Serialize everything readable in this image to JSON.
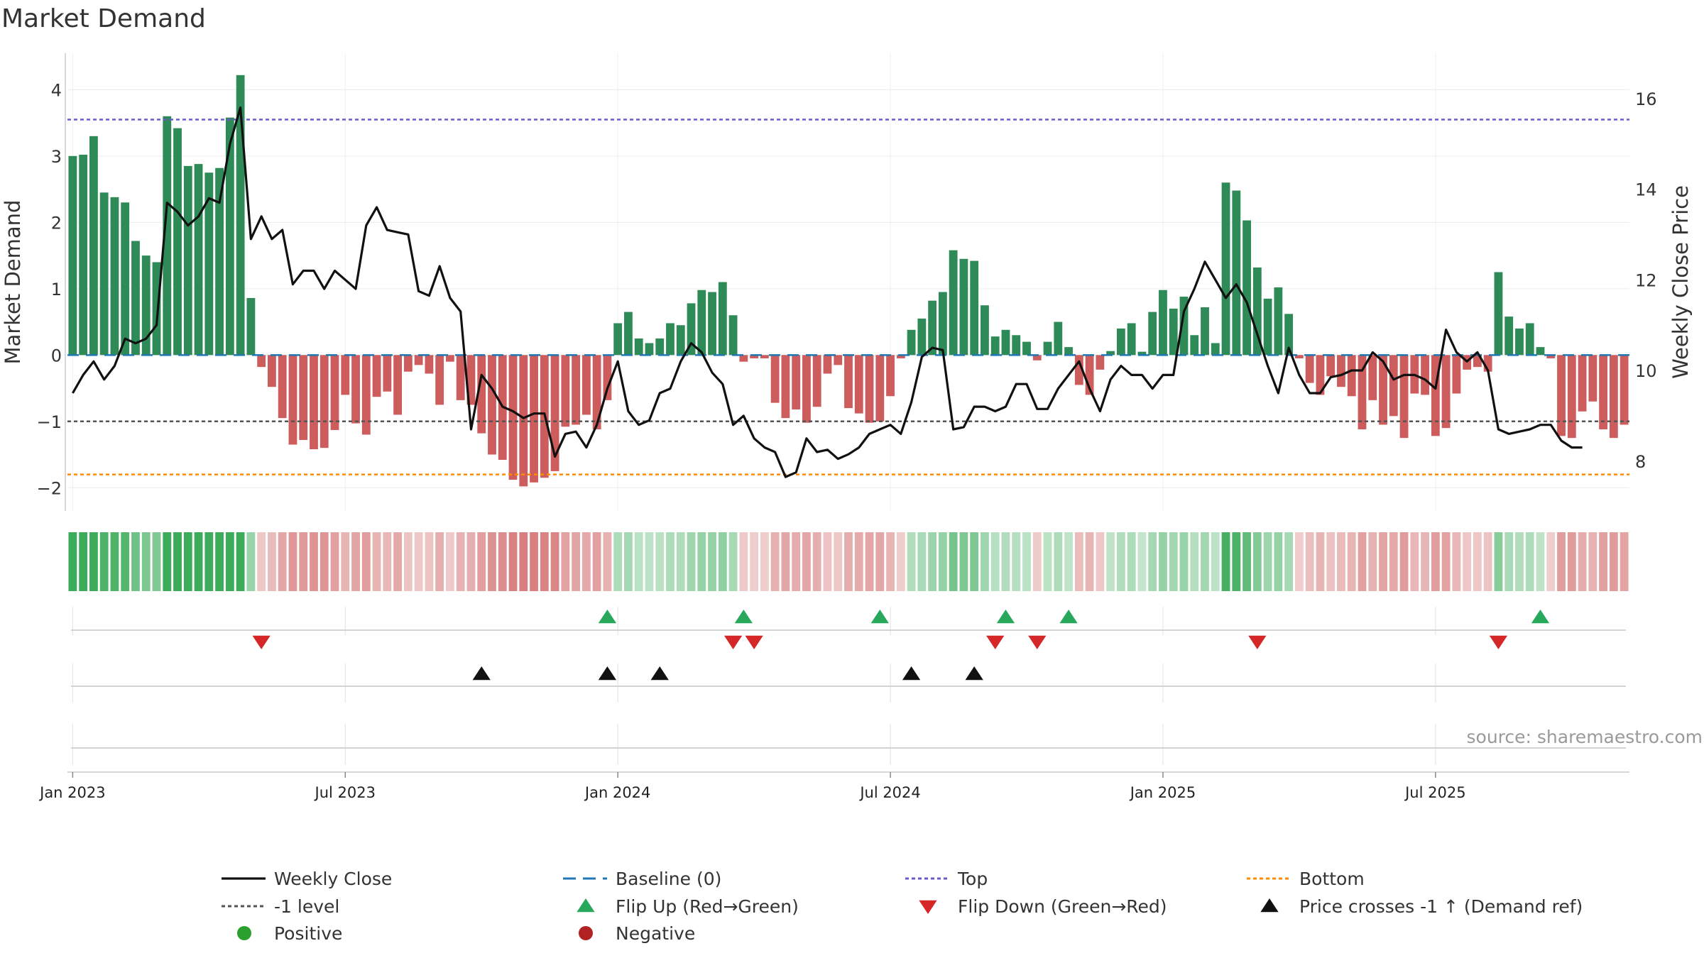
{
  "chart_data": {
    "type": "bar",
    "title": "Market Demand",
    "ylabel": "Market Demand",
    "y2label": "Weekly Close Price",
    "source": "source: sharemaestro.com",
    "ylim": [
      -2.35,
      4.55
    ],
    "y2lim": [
      6.9,
      17.0
    ],
    "y_ticks": [
      4,
      3,
      2,
      1,
      0,
      -1,
      -2
    ],
    "y_tick_labels": [
      "4",
      "3",
      "2",
      "1",
      "0",
      "−1",
      "−2"
    ],
    "y2_ticks": [
      16,
      14,
      12,
      10,
      8
    ],
    "y2_tick_labels": [
      "16",
      "14",
      "12",
      "10",
      "8"
    ],
    "reference_lines": {
      "top": 3.55,
      "minus_one": -1.0,
      "bottom": -1.8,
      "baseline": 0
    },
    "x_tick_labels": [
      "Jan 2023",
      "Jul 2023",
      "Jan 2024",
      "Jul 2024",
      "Jan 2025",
      "Jul 2025"
    ],
    "x_tick_weeks": [
      0,
      26,
      52,
      78,
      104,
      130
    ],
    "demand": [
      3.0,
      3.02,
      3.3,
      2.45,
      2.38,
      2.3,
      1.72,
      1.5,
      1.4,
      3.6,
      3.42,
      2.85,
      2.88,
      2.75,
      2.82,
      3.58,
      4.22,
      0.86,
      -0.18,
      -0.48,
      -0.95,
      -1.35,
      -1.28,
      -1.42,
      -1.4,
      -1.13,
      -0.6,
      -1.03,
      -1.2,
      -0.63,
      -0.55,
      -0.9,
      -0.25,
      -0.15,
      -0.28,
      -0.75,
      -0.1,
      -0.68,
      -0.75,
      -1.18,
      -1.5,
      -1.58,
      -1.88,
      -1.98,
      -1.92,
      -1.85,
      -1.75,
      -1.08,
      -1.05,
      -0.9,
      -1.12,
      -0.68,
      0.48,
      0.65,
      0.25,
      0.18,
      0.25,
      0.48,
      0.45,
      0.78,
      0.98,
      0.95,
      1.1,
      0.6,
      -0.1,
      -0.05,
      -0.05,
      -0.72,
      -0.95,
      -0.82,
      -1.02,
      -0.78,
      -0.28,
      -0.15,
      -0.8,
      -0.88,
      -1.02,
      -1.0,
      -0.62,
      -0.05,
      0.38,
      0.55,
      0.82,
      0.95,
      1.58,
      1.45,
      1.42,
      0.75,
      0.28,
      0.38,
      0.3,
      0.2,
      -0.08,
      0.2,
      0.5,
      0.12,
      -0.45,
      -0.6,
      -0.22,
      0.06,
      0.4,
      0.48,
      0.05,
      0.65,
      0.98,
      0.7,
      0.88,
      0.3,
      0.72,
      0.18,
      2.6,
      2.48,
      2.03,
      1.32,
      0.85,
      1.02,
      0.62,
      -0.05,
      -0.42,
      -0.6,
      -0.32,
      -0.48,
      -0.62,
      -1.12,
      -0.68,
      -1.05,
      -0.92,
      -1.25,
      -0.58,
      -0.6,
      -1.22,
      -1.1,
      -0.58,
      -0.22,
      -0.18,
      -0.25,
      1.25,
      0.58,
      0.4,
      0.48,
      0.12,
      -0.05,
      -1.22,
      -1.25,
      -0.85,
      -0.7,
      -1.12,
      -1.25,
      -1.05
    ],
    "weekly_close": [
      9.5,
      9.9,
      10.2,
      9.8,
      10.1,
      10.7,
      10.6,
      10.7,
      11.0,
      13.7,
      13.5,
      13.2,
      13.4,
      13.8,
      13.7,
      15.0,
      15.8,
      12.9,
      13.4,
      12.9,
      13.1,
      11.9,
      12.2,
      12.2,
      11.8,
      12.2,
      12.0,
      11.8,
      13.2,
      13.6,
      13.1,
      13.05,
      13.0,
      11.75,
      11.65,
      12.3,
      11.6,
      11.3,
      8.7,
      9.9,
      9.6,
      9.2,
      9.1,
      8.95,
      9.05,
      9.05,
      8.1,
      8.6,
      8.65,
      8.3,
      8.8,
      9.6,
      10.2,
      9.1,
      8.8,
      8.9,
      9.5,
      9.6,
      10.2,
      10.6,
      10.4,
      9.95,
      9.7,
      8.8,
      9.0,
      8.5,
      8.3,
      8.2,
      7.65,
      7.75,
      8.5,
      8.2,
      8.25,
      8.05,
      8.15,
      8.3,
      8.6,
      8.7,
      8.8,
      8.6,
      9.3,
      10.3,
      10.5,
      10.45,
      8.7,
      8.75,
      9.2,
      9.2,
      9.1,
      9.2,
      9.7,
      9.7,
      9.15,
      9.15,
      9.6,
      9.9,
      10.2,
      9.6,
      9.1,
      9.8,
      10.1,
      9.9,
      9.9,
      9.6,
      9.9,
      9.9,
      11.3,
      11.8,
      12.4,
      12.0,
      11.6,
      11.9,
      11.5,
      10.8,
      10.1,
      9.5,
      10.5,
      9.9,
      9.5,
      9.5,
      9.85,
      9.9,
      10.0,
      10.0,
      10.4,
      10.2,
      9.8,
      9.9,
      9.9,
      9.8,
      9.6,
      10.9,
      10.4,
      10.2,
      10.4,
      10.0,
      8.7,
      8.6,
      8.65,
      8.7,
      8.8,
      8.8,
      8.45,
      8.3,
      8.3
    ],
    "flip_up_weeks": [
      51,
      64,
      77,
      89,
      95,
      140
    ],
    "flip_down_weeks": [
      18,
      63,
      65,
      88,
      92,
      113,
      136
    ],
    "price_cross_weeks": [
      39,
      51,
      56,
      80,
      86
    ],
    "legend": [
      {
        "label": "Weekly Close",
        "marker": "line",
        "color": "#111111"
      },
      {
        "label": "Baseline (0)",
        "marker": "dash",
        "color": "#1f77b4"
      },
      {
        "label": "Top",
        "marker": "dot",
        "color": "#6a5acd"
      },
      {
        "label": "Bottom",
        "marker": "dot",
        "color": "#ff8c00"
      },
      {
        "label": "-1 level",
        "marker": "dot",
        "color": "#555555"
      },
      {
        "label": "Flip Up (Red→Green)",
        "marker": "tri-up",
        "color": "#27a85a"
      },
      {
        "label": "Flip Down (Green→Red)",
        "marker": "tri-down",
        "color": "#d62728"
      },
      {
        "label": "Price crosses -1 ↑ (Demand ref)",
        "marker": "tri-up",
        "color": "#111111"
      },
      {
        "label": "Positive",
        "marker": "circle",
        "color": "#2ca02c"
      },
      {
        "label": "Negative",
        "marker": "circle",
        "color": "#b22222"
      }
    ]
  },
  "colors": {
    "positive_bar": "#2e8b57",
    "negative_bar": "#cd5c5c",
    "heat_positive": "#3cab5a",
    "heat_negative": "#cd5c5c",
    "flip_up": "#27a85a",
    "flip_down": "#d62728",
    "price_cross": "#111111",
    "price_line": "#111111",
    "top_line": "#6a5acd",
    "bottom_line": "#ff8c00",
    "minus_one_line": "#555555",
    "baseline": "#1f77b4"
  }
}
